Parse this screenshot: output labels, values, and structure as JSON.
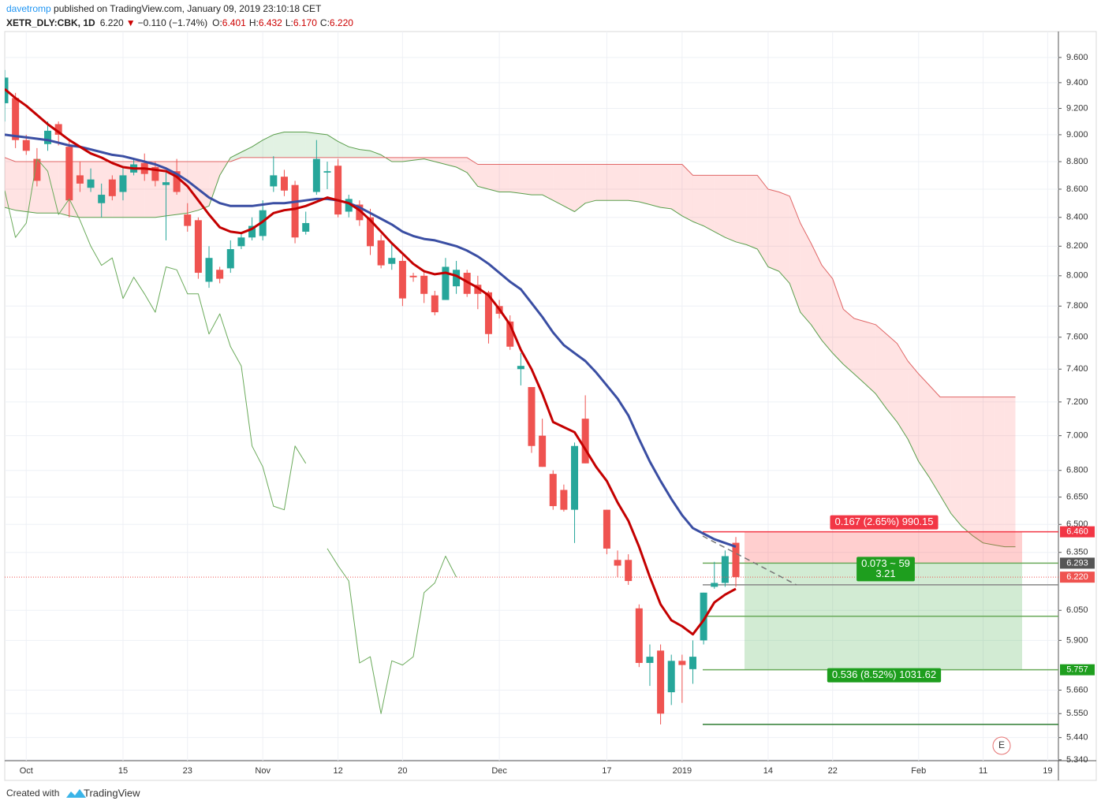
{
  "header": {
    "author": "davetromp",
    "published": " published on TradingView.com, January 09, 2019 23:10:18 CET",
    "symbol": "XETR_DLY:CBK, 1D",
    "last": "6.220",
    "change_arrow": "▼",
    "change": "−0.110 (−1.74%)",
    "o_label": "O:",
    "o": "6.401",
    "h_label": "H:",
    "h": "6.432",
    "l_label": "L:",
    "l": "6.170",
    "c_label": "C:",
    "c": "6.220"
  },
  "footer": {
    "created": "Created with",
    "brand": "TradingView"
  },
  "chart_data": {
    "type": "candlestick",
    "log_scale": true,
    "grid": true,
    "up_color": "#26a69a",
    "down_color": "#ef5350",
    "ylim": [
      5.336,
      9.81
    ],
    "yticks": [
      {
        "value": 9.6,
        "label": "9.600"
      },
      {
        "value": 9.4,
        "label": "9.400"
      },
      {
        "value": 9.2,
        "label": "9.200"
      },
      {
        "value": 9.0,
        "label": "9.000"
      },
      {
        "value": 8.8,
        "label": "8.800"
      },
      {
        "value": 8.6,
        "label": "8.600"
      },
      {
        "value": 8.4,
        "label": "8.400"
      },
      {
        "value": 8.2,
        "label": "8.200"
      },
      {
        "value": 8.0,
        "label": "8.000"
      },
      {
        "value": 7.8,
        "label": "7.800"
      },
      {
        "value": 7.6,
        "label": "7.600"
      },
      {
        "value": 7.4,
        "label": "7.400"
      },
      {
        "value": 7.2,
        "label": "7.200"
      },
      {
        "value": 7.0,
        "label": "7.000"
      },
      {
        "value": 6.8,
        "label": "6.800"
      },
      {
        "value": 6.65,
        "label": "6.650"
      },
      {
        "value": 6.5,
        "label": "6.500"
      },
      {
        "value": 6.35,
        "label": "6.350"
      },
      {
        "value": 6.05,
        "label": "6.050"
      },
      {
        "value": 5.9,
        "label": "5.900"
      },
      {
        "value": 5.66,
        "label": "5.660"
      },
      {
        "value": 5.55,
        "label": "5.550"
      },
      {
        "value": 5.44,
        "label": "5.440"
      },
      {
        "value": 5.34,
        "label": "5.340"
      }
    ],
    "categories": [
      null,
      null,
      "Oct",
      null,
      null,
      null,
      null,
      null,
      null,
      null,
      null,
      "15",
      null,
      null,
      null,
      null,
      null,
      "23",
      null,
      null,
      null,
      null,
      null,
      null,
      "Nov",
      null,
      null,
      null,
      null,
      null,
      null,
      "12",
      null,
      null,
      null,
      null,
      null,
      "20",
      null,
      null,
      null,
      null,
      null,
      null,
      null,
      null,
      "Dec",
      null,
      null,
      null,
      null,
      null,
      null,
      null,
      null,
      null,
      "17",
      null,
      null,
      null,
      null,
      null,
      null,
      "2019",
      null,
      null,
      null,
      null,
      null,
      null,
      null,
      "14",
      null,
      null,
      null,
      null,
      null,
      "22",
      null,
      null,
      null,
      null,
      null,
      null,
      null,
      "Feb",
      null,
      null,
      null,
      null,
      null,
      "11",
      null,
      null,
      null,
      null,
      null,
      "19"
    ],
    "open": [
      9.24,
      9.28,
      8.96,
      8.82,
      8.93,
      9.08,
      8.91,
      8.7,
      8.61,
      8.5,
      8.67,
      8.58,
      8.72,
      8.79,
      8.76,
      8.63,
      8.73,
      8.42,
      8.38,
      7.96,
      8.04,
      8.05,
      8.2,
      8.26,
      8.27,
      8.62,
      8.69,
      8.63,
      8.3,
      8.58,
      8.72,
      8.77,
      8.44,
      8.49,
      8.4,
      8.24,
      8.08,
      8.1,
      8.0,
      8.0,
      7.87,
      7.84,
      7.93,
      8.02,
      7.94,
      7.89,
      7.8,
      7.7,
      7.4,
      7.29,
      7.0,
      6.78,
      6.69,
      6.58,
      7.1,
      null,
      6.58,
      6.31,
      6.31,
      6.06,
      5.79,
      5.85,
      5.65,
      5.8,
      5.76,
      5.9,
      6.17,
      6.19,
      6.401,
      null,
      null,
      null,
      null,
      null,
      null,
      null,
      null,
      null,
      null,
      null,
      null,
      null,
      null,
      null,
      null,
      null,
      null,
      null,
      null,
      null,
      null,
      null,
      null,
      null,
      null,
      null,
      null,
      null
    ],
    "high": [
      9.5,
      9.32,
      9.0,
      8.9,
      9.1,
      9.1,
      8.95,
      8.8,
      8.75,
      8.64,
      8.7,
      8.76,
      8.82,
      8.86,
      8.8,
      8.72,
      8.82,
      8.5,
      8.4,
      8.2,
      8.06,
      8.24,
      8.3,
      8.4,
      8.52,
      8.84,
      8.74,
      8.66,
      8.44,
      8.96,
      8.8,
      8.82,
      8.56,
      8.52,
      8.46,
      8.28,
      8.22,
      8.14,
      8.02,
      8.04,
      7.9,
      8.12,
      8.1,
      8.04,
      8.0,
      7.9,
      7.84,
      7.74,
      7.5,
      7.29,
      7.1,
      6.8,
      6.72,
      6.96,
      7.24,
      null,
      6.58,
      6.36,
      6.34,
      6.08,
      5.88,
      5.88,
      5.83,
      5.83,
      5.9,
      6.14,
      6.3,
      6.36,
      6.432,
      null,
      null,
      null,
      null,
      null,
      null,
      null,
      null,
      null,
      null,
      null,
      null,
      null,
      null,
      null,
      null,
      null,
      null,
      null,
      null,
      null,
      null,
      null,
      null,
      null,
      null,
      null,
      null,
      null
    ],
    "low": [
      9.1,
      8.9,
      8.85,
      8.62,
      8.88,
      8.92,
      8.4,
      8.58,
      8.58,
      8.4,
      8.52,
      8.52,
      8.7,
      8.66,
      8.62,
      8.24,
      8.56,
      8.3,
      7.98,
      7.92,
      7.95,
      8.02,
      8.18,
      8.24,
      8.24,
      8.58,
      8.55,
      8.22,
      8.28,
      8.56,
      8.6,
      8.4,
      8.4,
      8.34,
      8.14,
      8.05,
      8.04,
      7.8,
      7.96,
      7.82,
      7.74,
      7.84,
      7.88,
      7.86,
      7.78,
      7.56,
      7.72,
      7.52,
      7.3,
      6.9,
      6.82,
      6.58,
      6.57,
      6.4,
      6.84,
      null,
      6.34,
      6.22,
      6.18,
      5.77,
      5.68,
      5.5,
      5.59,
      5.6,
      5.69,
      5.88,
      6.16,
      6.17,
      6.17,
      null,
      null,
      null,
      null,
      null,
      null,
      null,
      null,
      null,
      null,
      null,
      null,
      null,
      null,
      null,
      null,
      null,
      null,
      null,
      null,
      null,
      null,
      null,
      null,
      null,
      null,
      null,
      null,
      null
    ],
    "close": [
      9.44,
      8.96,
      8.88,
      8.66,
      9.03,
      9.0,
      8.52,
      8.64,
      8.67,
      8.56,
      8.55,
      8.7,
      8.78,
      8.71,
      8.66,
      8.65,
      8.58,
      8.34,
      8.02,
      8.12,
      7.98,
      8.18,
      8.26,
      8.34,
      8.45,
      8.7,
      8.59,
      8.26,
      8.36,
      8.82,
      8.73,
      8.42,
      8.53,
      8.38,
      8.2,
      8.07,
      8.12,
      7.85,
      7.99,
      7.88,
      7.76,
      8.06,
      8.04,
      7.88,
      7.88,
      7.62,
      7.75,
      7.54,
      7.42,
      6.94,
      6.82,
      6.6,
      6.58,
      6.94,
      6.84,
      null,
      6.37,
      6.28,
      6.2,
      5.79,
      5.82,
      5.55,
      5.8,
      5.78,
      5.82,
      6.14,
      6.19,
      6.33,
      6.22,
      null,
      null,
      null,
      null,
      null,
      null,
      null,
      null,
      null,
      null,
      null,
      null,
      null,
      null,
      null,
      null,
      null,
      null,
      null,
      null,
      null,
      null,
      null,
      null,
      null,
      null,
      null,
      null,
      null
    ],
    "cloud": {
      "up_fill": "rgba(76,175,80,0.16)",
      "down_fill": "rgba(255,82,82,0.16)",
      "span_a": {
        "color": "#5a9e4b",
        "values": [
          8.47,
          8.45,
          8.44,
          8.43,
          8.43,
          8.43,
          8.41,
          8.4,
          8.4,
          8.4,
          8.4,
          8.4,
          8.4,
          8.4,
          8.4,
          8.41,
          8.42,
          8.43,
          8.45,
          8.48,
          8.7,
          8.83,
          8.87,
          8.91,
          8.96,
          9.0,
          9.02,
          9.02,
          9.02,
          9.01,
          9.0,
          8.95,
          8.91,
          8.89,
          8.88,
          8.85,
          8.8,
          8.8,
          8.81,
          8.82,
          8.8,
          8.78,
          8.76,
          8.72,
          8.62,
          8.6,
          8.58,
          8.58,
          8.57,
          8.56,
          8.56,
          8.52,
          8.48,
          8.44,
          8.5,
          8.52,
          8.52,
          8.52,
          8.52,
          8.51,
          8.49,
          8.47,
          8.46,
          8.41,
          8.37,
          8.34,
          8.3,
          8.26,
          8.23,
          8.21,
          8.18,
          8.06,
          8.03,
          7.95,
          7.76,
          7.68,
          7.58,
          7.5,
          7.43,
          7.37,
          7.31,
          7.25,
          7.16,
          7.08,
          6.98,
          6.85,
          6.76,
          6.66,
          6.56,
          6.49,
          6.44,
          6.4,
          6.39,
          6.38,
          6.38,
          null,
          null,
          null
        ]
      },
      "span_b": {
        "color": "#e06666",
        "values": [
          8.83,
          8.8,
          8.8,
          8.8,
          8.8,
          8.8,
          8.8,
          8.8,
          8.8,
          8.8,
          8.8,
          8.8,
          8.8,
          8.8,
          8.8,
          8.8,
          8.8,
          8.8,
          8.8,
          8.8,
          8.8,
          8.8,
          8.83,
          8.83,
          8.83,
          8.83,
          8.83,
          8.83,
          8.83,
          8.83,
          8.83,
          8.83,
          8.83,
          8.83,
          8.83,
          8.83,
          8.83,
          8.83,
          8.83,
          8.83,
          8.83,
          8.83,
          8.83,
          8.83,
          8.78,
          8.78,
          8.78,
          8.78,
          8.78,
          8.78,
          8.78,
          8.78,
          8.78,
          8.78,
          8.78,
          8.78,
          8.78,
          8.78,
          8.78,
          8.78,
          8.78,
          8.78,
          8.78,
          8.78,
          8.7,
          8.7,
          8.7,
          8.7,
          8.7,
          8.7,
          8.7,
          8.6,
          8.58,
          8.55,
          8.36,
          8.22,
          8.07,
          7.98,
          7.78,
          7.72,
          7.7,
          7.68,
          7.62,
          7.56,
          7.45,
          7.37,
          7.3,
          7.23,
          7.23,
          7.23,
          7.23,
          7.23,
          7.23,
          7.23,
          7.23,
          null,
          null,
          null
        ]
      }
    },
    "lines": [
      {
        "color": "#6aaa5a",
        "width": 1,
        "values": [
          8.59,
          8.26,
          8.36,
          8.82,
          8.73,
          8.42,
          8.53,
          8.38,
          8.2,
          8.07,
          8.12,
          7.85,
          7.99,
          7.88,
          7.76,
          8.06,
          8.04,
          7.88,
          7.88,
          7.62,
          7.75,
          7.54,
          7.42,
          6.94,
          6.82,
          6.6,
          6.58,
          6.94,
          6.84,
          null,
          6.37,
          6.28,
          6.2,
          5.79,
          5.82,
          5.55,
          5.8,
          5.78,
          5.82,
          6.14,
          6.19,
          6.33,
          6.22,
          null,
          null,
          null,
          null,
          null,
          null,
          null,
          null,
          null,
          null,
          null,
          null,
          null,
          null,
          null,
          null,
          null,
          null,
          null,
          null,
          null,
          null,
          null,
          null,
          null,
          null,
          null,
          null,
          null,
          null,
          null,
          null,
          null,
          null,
          null,
          null,
          null,
          null,
          null,
          null,
          null,
          null,
          null,
          null,
          null,
          null,
          null,
          null,
          null,
          null,
          null,
          null,
          null,
          null,
          null
        ]
      },
      {
        "color": "#3a4ea3",
        "width": 3,
        "values": [
          9.0,
          8.99,
          8.98,
          8.97,
          8.96,
          8.94,
          8.92,
          8.91,
          8.89,
          8.87,
          8.85,
          8.84,
          8.82,
          8.8,
          8.78,
          8.75,
          8.71,
          8.66,
          8.6,
          8.54,
          8.5,
          8.48,
          8.48,
          8.48,
          8.49,
          8.5,
          8.5,
          8.51,
          8.52,
          8.53,
          8.53,
          8.52,
          8.5,
          8.47,
          8.43,
          8.39,
          8.35,
          8.3,
          8.27,
          8.25,
          8.24,
          8.22,
          8.2,
          8.17,
          8.13,
          8.08,
          8.02,
          7.96,
          7.91,
          7.82,
          7.73,
          7.63,
          7.55,
          7.5,
          7.45,
          7.38,
          7.3,
          7.22,
          7.12,
          6.98,
          6.85,
          6.74,
          6.64,
          6.55,
          6.48,
          6.45,
          6.42,
          6.4,
          6.38,
          null,
          null,
          null,
          null,
          null,
          null,
          null,
          null,
          null,
          null,
          null,
          null,
          null,
          null,
          null,
          null,
          null,
          null,
          null,
          null,
          null,
          null,
          null,
          null,
          null,
          null,
          null,
          null,
          null
        ]
      },
      {
        "color": "#c40000",
        "width": 3,
        "values": [
          9.35,
          9.28,
          9.22,
          9.15,
          9.08,
          9.02,
          8.96,
          8.91,
          8.86,
          8.83,
          8.79,
          8.76,
          8.75,
          8.75,
          8.74,
          8.73,
          8.69,
          8.62,
          8.52,
          8.42,
          8.33,
          8.3,
          8.29,
          8.32,
          8.37,
          8.43,
          8.45,
          8.46,
          8.48,
          8.51,
          8.54,
          8.52,
          8.5,
          8.45,
          8.38,
          8.3,
          8.22,
          8.15,
          8.08,
          8.03,
          8.01,
          8.02,
          8.0,
          7.96,
          7.92,
          7.87,
          7.78,
          7.68,
          7.52,
          7.4,
          7.25,
          7.08,
          7.05,
          7.02,
          6.92,
          6.82,
          6.74,
          6.62,
          6.52,
          6.38,
          6.22,
          6.08,
          6.0,
          5.97,
          5.93,
          6.0,
          6.09,
          6.13,
          6.16,
          null,
          null,
          null,
          null,
          null,
          null,
          null,
          null,
          null,
          null,
          null,
          null,
          null,
          null,
          null,
          null,
          null,
          null,
          null,
          null,
          null,
          null,
          null,
          null,
          null,
          null,
          null,
          null,
          null
        ]
      }
    ],
    "levels": [
      {
        "value": 6.46,
        "color": "#f23645"
      },
      {
        "value": 6.293,
        "color": "#6aaa5a"
      },
      {
        "value": 6.18,
        "color": "#888888"
      },
      {
        "value": 6.02,
        "color": "#6aaa5a"
      },
      {
        "value": 5.757,
        "color": "#6aaa5a"
      },
      {
        "value": 5.5,
        "color": "#2e7d32"
      }
    ],
    "position": {
      "entry": 6.293,
      "stop": 6.46,
      "target": 5.757,
      "stop_label": "0.167 (2.65%) 990.15",
      "center_label": [
        "0.073 ~ 59",
        "3.21"
      ],
      "target_label": "0.536 (8.52%) 1031.62"
    },
    "price_tags": [
      {
        "value": 6.46,
        "label": "6.460",
        "color": "#f23645"
      },
      {
        "value": 6.293,
        "label": "6.293",
        "color": "#555555"
      },
      {
        "value": 6.22,
        "label": "6.220",
        "color": "#ef5350"
      },
      {
        "value": 5.757,
        "label": "5.757",
        "color": "#1e9e1e"
      }
    ],
    "earnings_marker": "E"
  }
}
